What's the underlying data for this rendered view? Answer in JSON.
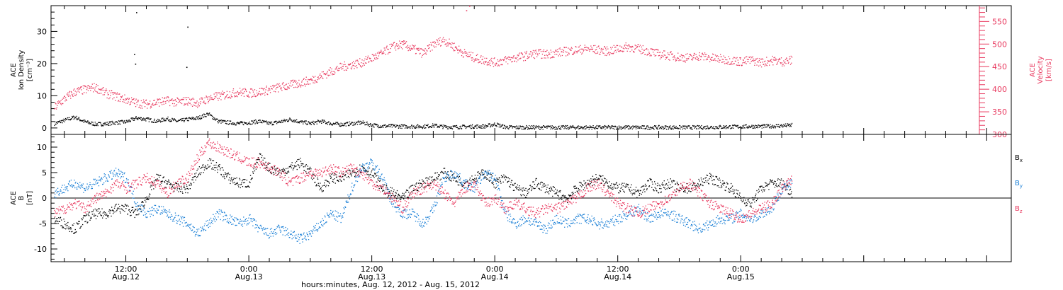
{
  "colors": {
    "black": "#000000",
    "red": "#e8385e",
    "blue": "#1a7fd6"
  },
  "xaxis": {
    "title": "hours:minutes, Aug. 12, 2012 - Aug. 15, 2012",
    "range_hours": [
      -7.3,
      86.4
    ],
    "ticks": [
      {
        "hour": 0,
        "time": "12:00",
        "date": "Aug.12"
      },
      {
        "hour": 12,
        "time": "0:00",
        "date": "Aug.13"
      },
      {
        "hour": 24,
        "time": "12:00",
        "date": "Aug.13"
      },
      {
        "hour": 36,
        "time": "0:00",
        "date": "Aug.14"
      },
      {
        "hour": 48,
        "time": "12:00",
        "date": "Aug.14"
      },
      {
        "hour": 60,
        "time": "0:00",
        "date": "Aug.15"
      }
    ]
  },
  "chart_data": [
    {
      "type": "scatter",
      "panel": "top",
      "ylabel_left": [
        "ACE",
        "Ion Density",
        "[cm⁻³]"
      ],
      "ylabel_right": [
        "ACE",
        "Velocity",
        "[km/s]"
      ],
      "ylim_left": [
        -2,
        38
      ],
      "ylim_right": [
        300,
        585
      ],
      "left_ticks": [
        "0",
        "10",
        "20",
        "30"
      ],
      "right_ticks": [
        "300",
        "350",
        "400",
        "450",
        "500",
        "550"
      ],
      "series": [
        {
          "name": "density",
          "axis": "left",
          "color": "black",
          "x": [
            -7,
            -6,
            -5,
            -4,
            -3,
            -2,
            -1,
            0,
            1,
            2,
            3,
            4,
            5,
            6,
            7,
            8,
            9,
            10,
            11,
            12,
            13,
            14,
            15,
            16,
            17,
            18,
            19,
            20,
            21,
            22,
            23,
            24,
            25,
            26,
            27,
            28,
            29,
            30,
            31,
            32,
            33,
            34,
            35,
            36,
            37,
            38,
            39,
            40,
            41,
            42,
            43,
            44,
            45,
            46,
            47,
            48,
            49,
            50,
            51,
            52,
            53,
            54,
            55,
            56,
            57,
            58,
            59,
            60,
            61,
            62,
            63,
            64,
            65
          ],
          "y": [
            1.5,
            2.5,
            3.5,
            2.0,
            1.3,
            1.4,
            1.8,
            2.0,
            3.2,
            2.8,
            2.2,
            3.0,
            2.2,
            2.8,
            3.2,
            4.5,
            2.2,
            1.8,
            1.5,
            1.8,
            2.2,
            1.5,
            2.0,
            2.8,
            2.0,
            1.5,
            2.2,
            1.5,
            1.2,
            1.5,
            1.8,
            1.0,
            0.7,
            0.7,
            0.6,
            0.6,
            0.6,
            0.9,
            0.5,
            0.4,
            0.5,
            0.6,
            0.6,
            1.3,
            0.4,
            0.3,
            0.3,
            0.3,
            0.3,
            0.3,
            0.3,
            0.3,
            0.3,
            0.3,
            0.3,
            0.3,
            0.3,
            0.3,
            0.3,
            0.3,
            0.3,
            0.3,
            0.3,
            0.3,
            0.4,
            0.4,
            0.5,
            0.5,
            0.6,
            0.6,
            0.7,
            0.8,
            1.0
          ]
        },
        {
          "name": "density-spikes",
          "axis": "left",
          "color": "black",
          "x": [
            1.0,
            0.8,
            6.0,
            0.9,
            5.9
          ],
          "y": [
            36.0,
            23.0,
            31.5,
            20.0,
            19.0
          ]
        },
        {
          "name": "velocity",
          "axis": "right",
          "color": "red",
          "x": [
            -7,
            -6,
            -5,
            -4,
            -3,
            -2,
            -1,
            0,
            1,
            2,
            3,
            4,
            5,
            6,
            7,
            8,
            9,
            10,
            11,
            12,
            13,
            14,
            15,
            16,
            17,
            18,
            19,
            20,
            21,
            22,
            23,
            24,
            25,
            26,
            27,
            28,
            29,
            30,
            31,
            32,
            33,
            34,
            35,
            36,
            37,
            38,
            39,
            40,
            41,
            42,
            43,
            44,
            45,
            46,
            47,
            48,
            49,
            50,
            51,
            52,
            53,
            54,
            55,
            56,
            57,
            58,
            59,
            60,
            61,
            62,
            63,
            64,
            65
          ],
          "y": [
            360,
            380,
            395,
            400,
            405,
            392,
            385,
            378,
            370,
            368,
            372,
            375,
            372,
            375,
            370,
            380,
            385,
            390,
            395,
            392,
            395,
            400,
            405,
            410,
            415,
            420,
            430,
            440,
            450,
            455,
            460,
            470,
            480,
            495,
            500,
            490,
            480,
            500,
            510,
            495,
            480,
            470,
            465,
            460,
            465,
            470,
            475,
            480,
            478,
            482,
            485,
            488,
            490,
            488,
            485,
            490,
            495,
            490,
            485,
            478,
            475,
            472,
            470,
            475,
            470,
            468,
            465,
            462,
            465,
            460,
            465,
            462,
            465
          ]
        },
        {
          "name": "velocity-spikes",
          "axis": "right",
          "color": "red",
          "x": [
            33.5,
            33.2,
            27.0
          ],
          "y": [
            585,
            575,
            500
          ]
        }
      ]
    },
    {
      "type": "scatter",
      "panel": "bottom",
      "ylabel_left": [
        "ACE",
        "B",
        "[nT]"
      ],
      "ylim": [
        -12.5,
        12.5
      ],
      "left_ticks": [
        "-10",
        "-5",
        "0",
        "5",
        "10"
      ],
      "legend": [
        {
          "text": "B",
          "sub": "x",
          "color": "black"
        },
        {
          "text": "B",
          "sub": "y",
          "color": "blue"
        },
        {
          "text": "B",
          "sub": "z",
          "color": "red"
        }
      ],
      "series": [
        {
          "name": "Bx",
          "color": "black",
          "x": [
            -7,
            -6,
            -5,
            -4,
            -3,
            -2,
            -1,
            0,
            1,
            2,
            3,
            4,
            5,
            6,
            7,
            8,
            9,
            10,
            11,
            12,
            13,
            14,
            15,
            16,
            17,
            18,
            19,
            20,
            21,
            22,
            23,
            24,
            25,
            26,
            27,
            28,
            29,
            30,
            31,
            32,
            33,
            34,
            35,
            36,
            37,
            38,
            39,
            40,
            41,
            42,
            43,
            44,
            45,
            46,
            47,
            48,
            49,
            50,
            51,
            52,
            53,
            54,
            55,
            56,
            57,
            58,
            59,
            60,
            61,
            62,
            63,
            64,
            65
          ],
          "y": [
            -4,
            -5,
            -6,
            -4,
            -3,
            -3,
            -2,
            -2,
            -3,
            0,
            4,
            3,
            2,
            2,
            5,
            7,
            6,
            4,
            3,
            3,
            8,
            6,
            5,
            6,
            7,
            5,
            2,
            4,
            4,
            5,
            6,
            5,
            2,
            1,
            0,
            2,
            3,
            4,
            5,
            4,
            3,
            4,
            5,
            3,
            4,
            2,
            1,
            3,
            2,
            1,
            0,
            2,
            3,
            4,
            3,
            2,
            2,
            1,
            3,
            2,
            3,
            2,
            2,
            3,
            4,
            3,
            2,
            0,
            -1,
            2,
            3,
            3,
            1
          ]
        },
        {
          "name": "By",
          "color": "blue",
          "x": [
            -7,
            -6,
            -5,
            -4,
            -3,
            -2,
            -1,
            0,
            1,
            2,
            3,
            4,
            5,
            6,
            7,
            8,
            9,
            10,
            11,
            12,
            13,
            14,
            15,
            16,
            17,
            18,
            19,
            20,
            21,
            22,
            23,
            24,
            25,
            26,
            27,
            28,
            29,
            30,
            31,
            32,
            33,
            34,
            35,
            36,
            37,
            38,
            39,
            40,
            41,
            42,
            43,
            44,
            45,
            46,
            47,
            48,
            49,
            50,
            51,
            52,
            53,
            54,
            55,
            56,
            57,
            58,
            59,
            60,
            61,
            62,
            63,
            64,
            65
          ],
          "y": [
            1,
            2,
            3,
            2,
            3,
            4,
            5,
            4,
            -1,
            -3,
            -2,
            -3,
            -4,
            -5,
            -7,
            -5,
            -3,
            -4,
            -5,
            -4,
            -6,
            -7,
            -6,
            -7,
            -8,
            -7,
            -5,
            -3,
            -4,
            2,
            6,
            7,
            4,
            -1,
            -3,
            -3,
            -5,
            -2,
            4,
            5,
            3,
            2,
            5,
            4,
            -3,
            -5,
            -4,
            -5,
            -6,
            -4,
            -5,
            -4,
            -4,
            -5,
            -5,
            -4,
            -3,
            -2,
            -4,
            -3,
            -3,
            -4,
            -5,
            -6,
            -5,
            -4,
            -4,
            -3,
            -4,
            -3,
            -2,
            2,
            3
          ]
        },
        {
          "name": "Bz",
          "color": "red",
          "x": [
            -7,
            -6,
            -5,
            -4,
            -3,
            -2,
            -1,
            0,
            1,
            2,
            3,
            4,
            5,
            6,
            7,
            8,
            9,
            10,
            11,
            12,
            13,
            14,
            15,
            16,
            17,
            18,
            19,
            20,
            21,
            22,
            23,
            24,
            25,
            26,
            27,
            28,
            29,
            30,
            31,
            32,
            33,
            34,
            35,
            36,
            37,
            38,
            39,
            40,
            41,
            42,
            43,
            44,
            45,
            46,
            47,
            48,
            49,
            50,
            51,
            52,
            53,
            54,
            55,
            56,
            57,
            58,
            59,
            60,
            61,
            62,
            63,
            64,
            65
          ],
          "y": [
            -3,
            -2,
            -1,
            -2,
            0,
            1,
            3,
            2,
            3,
            4,
            3,
            1,
            3,
            4,
            8,
            11,
            10,
            9,
            8,
            7,
            7,
            6,
            5,
            3,
            4,
            5,
            5,
            6,
            5,
            6,
            5,
            3,
            2,
            0,
            -2,
            1,
            2,
            3,
            1,
            -1,
            2,
            3,
            -1,
            0,
            -2,
            -1,
            -2,
            -3,
            -2,
            -2,
            -1,
            0,
            2,
            3,
            1,
            -1,
            -2,
            -3,
            -2,
            -1,
            0,
            2,
            3,
            1,
            -1,
            -2,
            -3,
            -4,
            -3,
            -2,
            -1,
            2,
            4
          ]
        }
      ]
    }
  ]
}
